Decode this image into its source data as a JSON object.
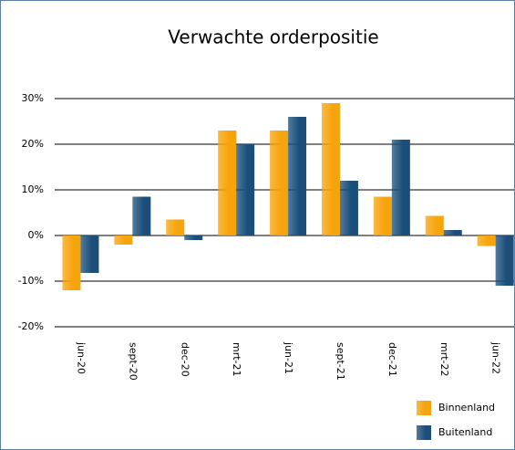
{
  "chart_data": {
    "type": "bar",
    "title": "Verwachte orderpositie",
    "categories": [
      "jun-20",
      "sept-20",
      "dec-20",
      "mrt-21",
      "jun-21",
      "sept-21",
      "dec-21",
      "mrt-22",
      "jun-22"
    ],
    "series": [
      {
        "name": "Binnenland",
        "color": "#f7a30a",
        "values": [
          -12,
          -2,
          3.5,
          23,
          23,
          29,
          8.5,
          4.3,
          -2.3
        ]
      },
      {
        "name": "Buitenland",
        "color": "#1b4f7a",
        "values": [
          -8.2,
          8.5,
          -1,
          20,
          26,
          12,
          21,
          1.2,
          -11
        ]
      }
    ],
    "ylim": [
      -20,
      30
    ],
    "yticks": [
      {
        "value": -20,
        "label": "-20%"
      },
      {
        "value": -10,
        "label": "-10%"
      },
      {
        "value": 0,
        "label": "0%"
      },
      {
        "value": 10,
        "label": "10%"
      },
      {
        "value": 20,
        "label": "20%"
      },
      {
        "value": 30,
        "label": "30%"
      }
    ],
    "grid": true,
    "legend": "bottom-right"
  }
}
